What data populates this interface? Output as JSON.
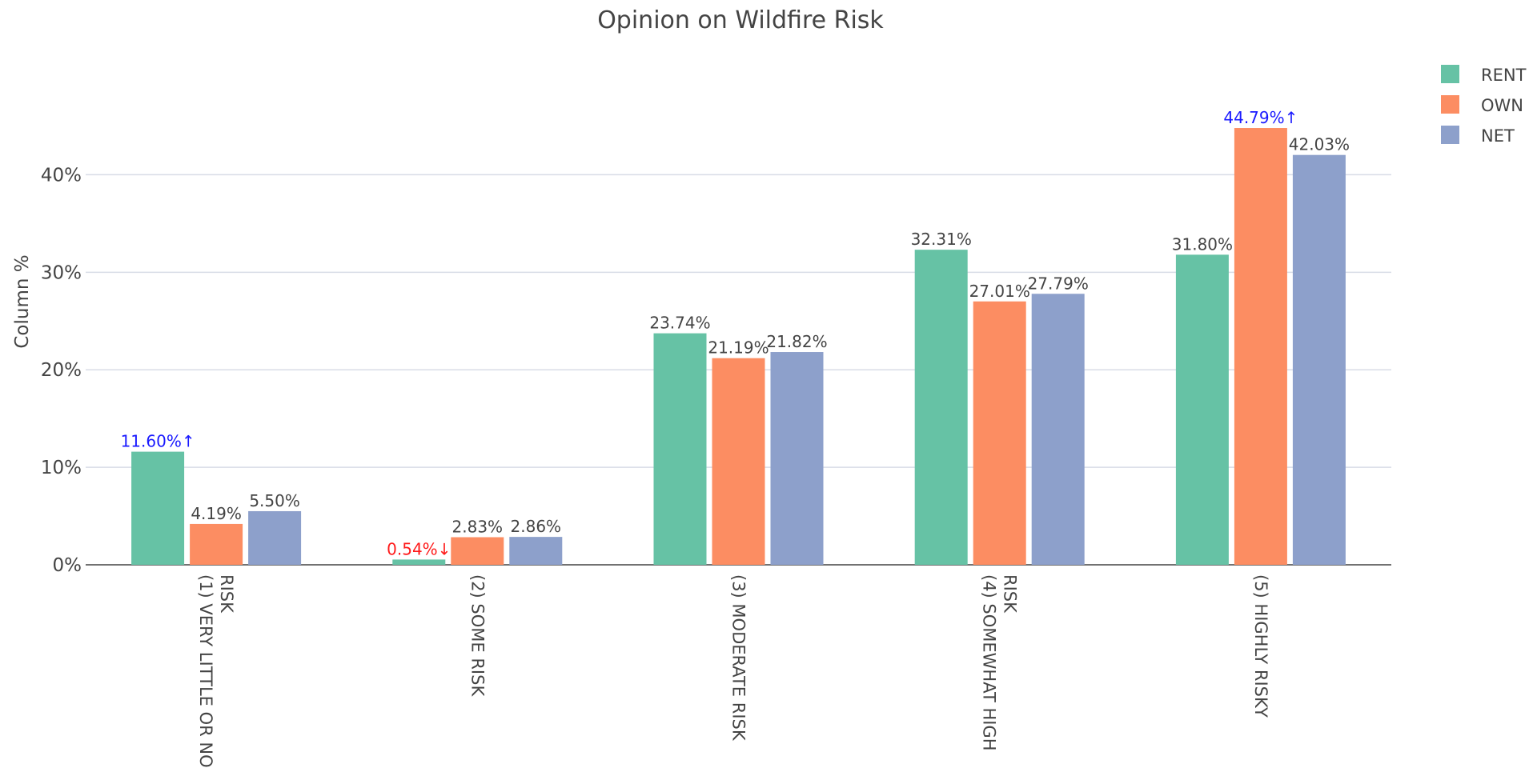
{
  "chart_data": {
    "type": "bar",
    "title": "Opinion on Wildfire Risk",
    "ylabel": "Column %",
    "xlabel": "",
    "ylim": [
      0,
      47.5
    ],
    "yticks": [
      {
        "value": 0,
        "label": "0%"
      },
      {
        "value": 10,
        "label": "10%"
      },
      {
        "value": 20,
        "label": "20%"
      },
      {
        "value": 30,
        "label": "30%"
      },
      {
        "value": 40,
        "label": "40%"
      }
    ],
    "grid": true,
    "legend_position": "top-right",
    "categories": [
      [
        "(1) VERY LITTLE OR NO",
        "RISK"
      ],
      [
        "(2) SOME RISK"
      ],
      [
        "(3) MODERATE RISK"
      ],
      [
        "(4) SOMEWHAT HIGH",
        "RISK"
      ],
      [
        "(5) HIGHLY RISKY"
      ]
    ],
    "series": [
      {
        "name": "RENT",
        "color": "#66c2a5",
        "values": [
          11.6,
          0.54,
          23.74,
          32.31,
          31.8
        ],
        "labels": [
          "11.60%↑",
          "0.54%↓",
          "23.74%",
          "32.31%",
          "31.80%"
        ],
        "label_colors": [
          "#1a1aff",
          "#ff1a1a",
          "#444444",
          "#444444",
          "#444444"
        ]
      },
      {
        "name": "OWN",
        "color": "#fc8d62",
        "values": [
          4.19,
          2.83,
          21.19,
          27.01,
          44.79
        ],
        "labels": [
          "4.19%",
          "2.83%",
          "21.19%",
          "27.01%",
          "44.79%↑"
        ],
        "label_colors": [
          "#444444",
          "#444444",
          "#444444",
          "#444444",
          "#1a1aff"
        ]
      },
      {
        "name": "NET",
        "color": "#8da0cb",
        "values": [
          5.5,
          2.86,
          21.82,
          27.79,
          42.03
        ],
        "labels": [
          "5.50%",
          "2.86%",
          "21.82%",
          "27.79%",
          "42.03%"
        ],
        "label_colors": [
          "#444444",
          "#444444",
          "#444444",
          "#444444",
          "#444444"
        ]
      }
    ]
  }
}
